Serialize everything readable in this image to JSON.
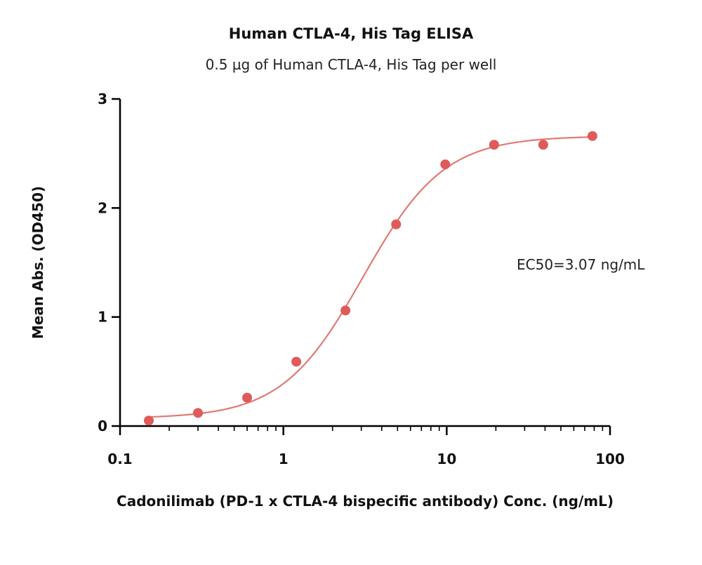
{
  "chart_data": {
    "type": "scatter",
    "title": "Human CTLA-4, His Tag ELISA",
    "subtitle": "0.5 µg of Human CTLA-4, His Tag per well",
    "xlabel": "Cadonilimab (PD-1 x CTLA-4 bispecific antibody) Conc. (ng/mL)",
    "ylabel": "Mean Abs. (OD450)",
    "x_scale": "log",
    "xlim": [
      0.1,
      100
    ],
    "ylim": [
      0,
      3
    ],
    "x_ticks": [
      0.1,
      1,
      10,
      100
    ],
    "x_tick_labels": [
      "0.1",
      "1",
      "10",
      "100"
    ],
    "y_ticks": [
      0,
      1,
      2,
      3
    ],
    "y_tick_labels": [
      "0",
      "1",
      "2",
      "3"
    ],
    "grid": false,
    "annotation": "EC50=3.07 ng/mL",
    "color": "#e05a5a",
    "curve_color": "#e07a74",
    "series": [
      {
        "x": [
          0.15,
          0.3,
          0.6,
          1.2,
          2.4,
          4.9,
          9.8,
          19.5,
          39,
          78
        ],
        "y": [
          0.05,
          0.12,
          0.26,
          0.59,
          1.06,
          1.85,
          2.4,
          2.58,
          2.58,
          2.66
        ]
      }
    ],
    "fit": {
      "model": "4PL",
      "bottom": 0.07,
      "top": 2.66,
      "ec50": 3.07,
      "hill": 1.75,
      "x_range": [
        0.15,
        78
      ]
    }
  }
}
